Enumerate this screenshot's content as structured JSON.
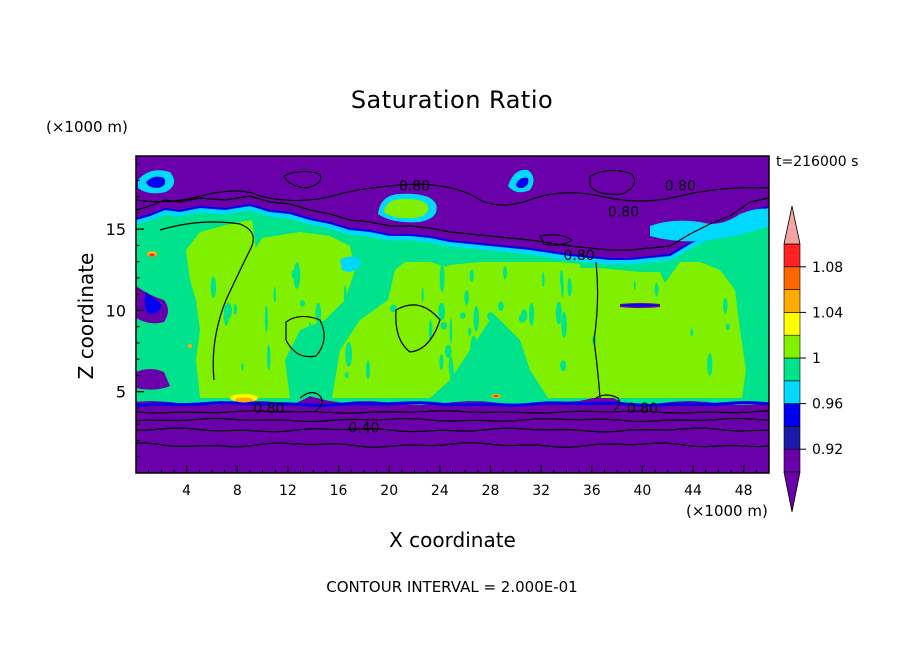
{
  "chart_data": {
    "type": "heatmap",
    "title": "Saturation Ratio",
    "xlabel": "X coordinate",
    "ylabel": "Z coordinate",
    "x_unit_label": "(×1000 m)",
    "y_unit_label": "(×1000 m)",
    "time_label": "t=216000 s",
    "note": "CONTOUR INTERVAL = 2.000E-01",
    "xlim": [
      0,
      50
    ],
    "ylim": [
      0,
      19.5
    ],
    "x_ticks": [
      4,
      8,
      12,
      16,
      20,
      24,
      28,
      32,
      36,
      40,
      44,
      48
    ],
    "y_ticks": [
      5,
      10,
      15
    ],
    "colorbar": {
      "levels": [
        0.9,
        0.92,
        0.94,
        0.96,
        0.98,
        1.0,
        1.02,
        1.04,
        1.06,
        1.08,
        1.1
      ],
      "tick_labels": [
        "0.92",
        "0.96",
        "1",
        "1.04",
        "1.08"
      ],
      "tick_values": [
        0.92,
        0.96,
        1.0,
        1.04,
        1.08
      ],
      "colors": [
        "#6a00aa",
        "#1a1aa8",
        "#0000f0",
        "#00d8ff",
        "#00e38c",
        "#80f000",
        "#ffff00",
        "#ffaa00",
        "#ff6600",
        "#ff2222",
        "#f4a3a3"
      ],
      "under_color": "#6a00aa",
      "over_color": "#f4a3a3"
    },
    "regions": [
      {
        "name": "lower-dry-layer",
        "z_range": [
          0,
          4.5
        ],
        "value": "< 0.90"
      },
      {
        "name": "mid-saturated-layer",
        "z_range": [
          4.5,
          15
        ],
        "value": "0.98–1.01"
      },
      {
        "name": "upper-dry-layer",
        "z_range": [
          15,
          19.5
        ],
        "value": "< 0.90"
      }
    ],
    "contour_labels": [
      {
        "text": "0.80",
        "x": 10.5,
        "z": 4.0
      },
      {
        "text": "0.40",
        "x": 18.0,
        "z": 2.8
      },
      {
        "text": "0.80",
        "x": 40.0,
        "z": 4.0
      },
      {
        "text": "0.80",
        "x": 22.0,
        "z": 17.7
      },
      {
        "text": "0.80",
        "x": 35.0,
        "z": 13.4
      },
      {
        "text": "0.80",
        "x": 38.5,
        "z": 16.1
      },
      {
        "text": "0.80",
        "x": 43.0,
        "z": 17.7
      }
    ]
  }
}
